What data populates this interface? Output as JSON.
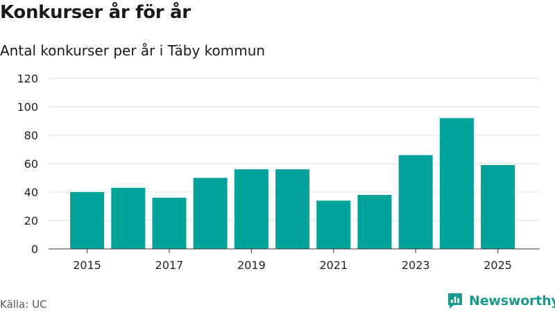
{
  "header": {
    "title": "Konkurser år för år",
    "subtitle": "Antal konkurser per år i Täby kommun"
  },
  "footer": {
    "source": "Källa: UC",
    "brand": "Newsworthy"
  },
  "colors": {
    "bar": "#00a39a",
    "brand": "#1a9a8e",
    "grid": "#dddddd",
    "axis": "#333333"
  },
  "icons": {
    "logo": "newsworthy-logo-icon"
  },
  "chart_data": {
    "type": "bar",
    "title": "Konkurser år för år",
    "subtitle": "Antal konkurser per år i Täby kommun",
    "xlabel": "",
    "ylabel": "",
    "categories": [
      2015,
      2016,
      2017,
      2018,
      2019,
      2020,
      2021,
      2022,
      2023,
      2024,
      2025
    ],
    "values": [
      40,
      43,
      36,
      50,
      56,
      56,
      34,
      38,
      66,
      92,
      59
    ],
    "ylim": [
      0,
      120
    ],
    "yticks": [
      0,
      20,
      40,
      60,
      80,
      100,
      120
    ],
    "xtick_labels": [
      "2015",
      "2017",
      "2019",
      "2021",
      "2023",
      "2025"
    ],
    "grid": true,
    "legend": "none"
  }
}
